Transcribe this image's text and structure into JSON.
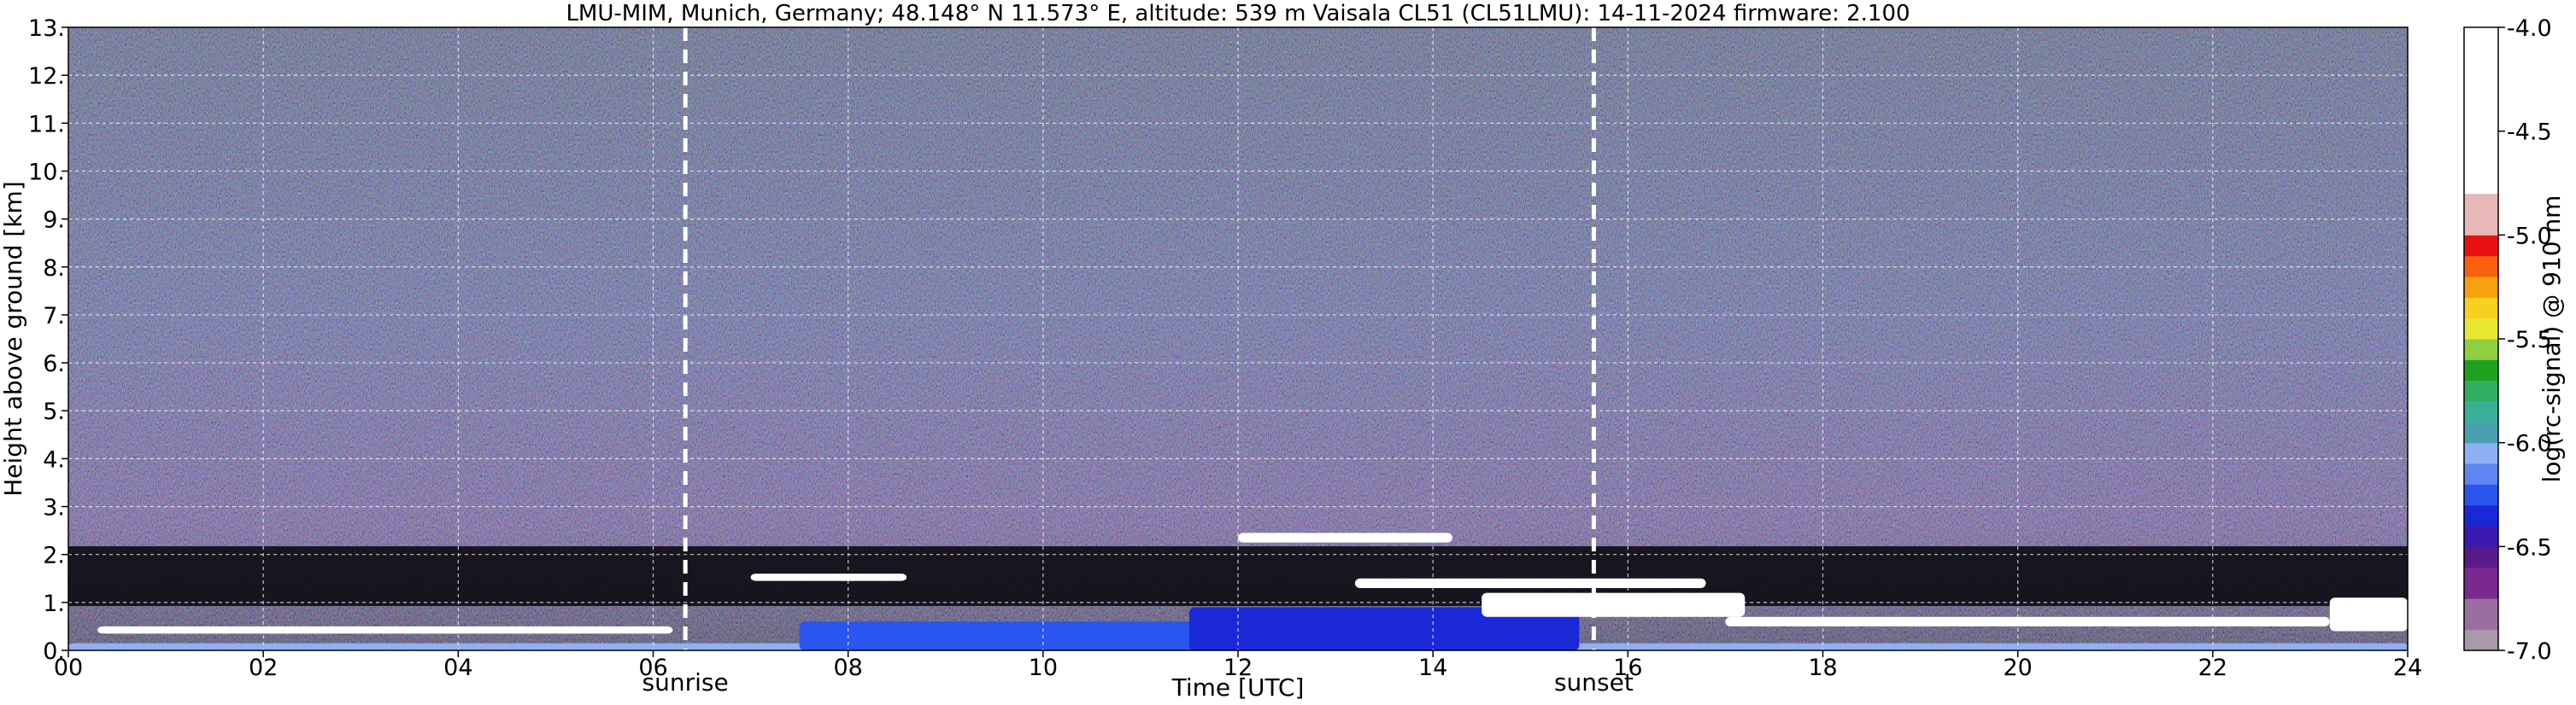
{
  "chart_data": {
    "type": "heatmap",
    "title": "LMU-MIM, Munich, Germany; 48.148° N 11.573° E, altitude: 539 m    Vaisala CL51 (CL51LMU): 14-11-2024    firmware: 2.100",
    "xlabel": "Time [UTC]",
    "ylabel": "Height above ground [km]",
    "xlim": [
      0,
      24
    ],
    "ylim": [
      0,
      13
    ],
    "x_ticks": [
      "00",
      "02",
      "04",
      "06",
      "08",
      "10",
      "12",
      "14",
      "16",
      "18",
      "20",
      "22",
      "24"
    ],
    "y_ticks": [
      "0.",
      "1.",
      "2.",
      "3.",
      "4.",
      "5.",
      "6.",
      "7.",
      "8.",
      "9.",
      "10.",
      "11.",
      "12.",
      "13."
    ],
    "grid": true,
    "colorbar": {
      "label": "log(rc-signal) @ 910 nm",
      "range": [
        -7.0,
        -4.0
      ],
      "ticks": [
        "-4.0",
        "-4.5",
        "-5.0",
        "-5.5",
        "-6.0",
        "-6.5",
        "-7.0"
      ]
    },
    "annotations": [
      {
        "label": "sunrise",
        "x": 6.33
      },
      {
        "label": "sunset",
        "x": 15.65
      }
    ],
    "layers": [
      {
        "x_start": 0.0,
        "x_end": 24.0,
        "y_bottom": 0.0,
        "y_top": 0.15,
        "value": -6.1
      },
      {
        "x_start": 7.5,
        "x_end": 15.0,
        "y_bottom": 0.0,
        "y_top": 0.6,
        "value": -6.3
      },
      {
        "x_start": 11.5,
        "x_end": 15.5,
        "y_bottom": 0.0,
        "y_top": 0.9,
        "value": -6.4
      },
      {
        "x_start": 0.3,
        "x_end": 6.2,
        "y_bottom": 0.35,
        "y_top": 0.5,
        "value": -4.2
      },
      {
        "x_start": 7.0,
        "x_end": 8.6,
        "y_bottom": 1.45,
        "y_top": 1.6,
        "value": -4.3
      },
      {
        "x_start": 12.0,
        "x_end": 14.2,
        "y_bottom": 2.25,
        "y_top": 2.45,
        "value": -4.5
      },
      {
        "x_start": 13.2,
        "x_end": 16.8,
        "y_bottom": 1.3,
        "y_top": 1.5,
        "value": -4.2
      },
      {
        "x_start": 14.5,
        "x_end": 17.2,
        "y_bottom": 0.7,
        "y_top": 1.2,
        "value": -4.1
      },
      {
        "x_start": 17.0,
        "x_end": 23.2,
        "y_bottom": 0.5,
        "y_top": 0.7,
        "value": -4.3
      },
      {
        "x_start": 23.2,
        "x_end": 24.0,
        "y_bottom": 0.4,
        "y_top": 1.1,
        "value": -4.8
      }
    ]
  }
}
